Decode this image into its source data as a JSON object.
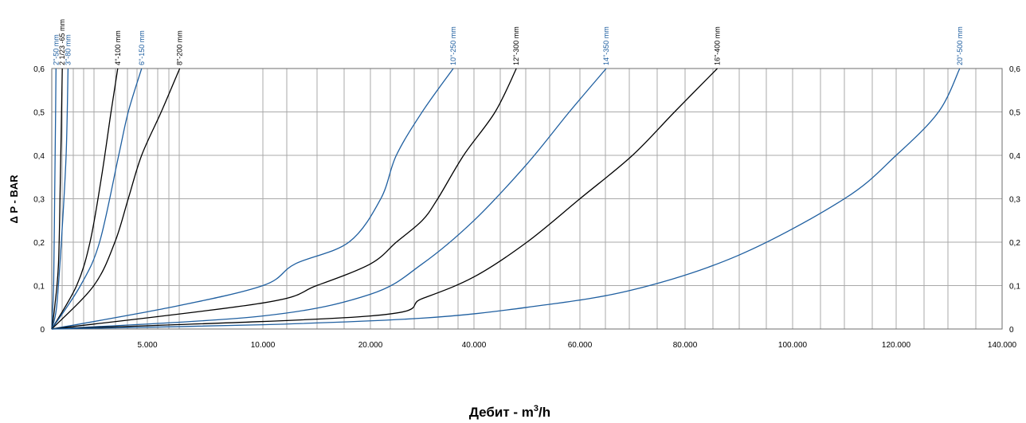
{
  "chart_data": {
    "type": "line",
    "xlabel_main": "Дебит - m",
    "xlabel_sup": "3",
    "xlabel_tail": "/h",
    "ylabel": "Δ P - BAR",
    "ylim": [
      0,
      0.6
    ],
    "x_ticks": [
      "5.000",
      "10.000",
      "20.000",
      "40.000",
      "60.000",
      "80.000",
      "100.000",
      "120.000",
      "140.000"
    ],
    "y_ticks": [
      "0",
      "0,1",
      "0,2",
      "0,3",
      "0,4",
      "0,5",
      "0,6"
    ],
    "grid": true,
    "series": [
      {
        "name": "2\"-50 mm",
        "color": "#1f5fa0",
        "points": [
          [
            0,
            0
          ],
          [
            0.1,
            0.11
          ],
          [
            0.15,
            0.3
          ],
          [
            0.2,
            0.5
          ],
          [
            0.22,
            0.6
          ]
        ]
      },
      {
        "name": "2 1/23 -65 mm",
        "color": "#000000",
        "points": [
          [
            0,
            0
          ],
          [
            0.15,
            0.05
          ],
          [
            0.35,
            0.15
          ],
          [
            0.45,
            0.35
          ],
          [
            0.55,
            0.6
          ]
        ]
      },
      {
        "name": "3\"-80 mm",
        "color": "#1f5fa0",
        "points": [
          [
            0,
            0
          ],
          [
            0.25,
            0.05
          ],
          [
            0.5,
            0.2
          ],
          [
            0.75,
            0.4
          ],
          [
            0.85,
            0.6
          ]
        ]
      },
      {
        "name": "4\"-100 mm",
        "color": "#000000",
        "points": [
          [
            0,
            0
          ],
          [
            1.3,
            0.1
          ],
          [
            2.0,
            0.2
          ],
          [
            2.6,
            0.35
          ],
          [
            3.1,
            0.5
          ],
          [
            3.45,
            0.6
          ]
        ]
      },
      {
        "name": "6\"-150 mm",
        "color": "#1f5fa0",
        "points": [
          [
            0,
            0
          ],
          [
            1.5,
            0.1
          ],
          [
            2.5,
            0.2
          ],
          [
            3.5,
            0.4
          ],
          [
            4.0,
            0.5
          ],
          [
            4.7,
            0.6
          ]
        ]
      },
      {
        "name": "8\"-200 mm",
        "color": "#000000",
        "points": [
          [
            0,
            0
          ],
          [
            2.2,
            0.1
          ],
          [
            3.3,
            0.2
          ],
          [
            4.0,
            0.3
          ],
          [
            4.7,
            0.4
          ],
          [
            5.6,
            0.5
          ],
          [
            6.4,
            0.6
          ]
        ]
      },
      {
        "name": "10\"-250 mm",
        "color": "#1f5fa0",
        "points": [
          [
            0,
            0
          ],
          [
            6.0,
            0.05
          ],
          [
            10.0,
            0.1
          ],
          [
            13.0,
            0.15
          ],
          [
            18.0,
            0.2
          ],
          [
            22.0,
            0.3
          ],
          [
            25.0,
            0.4
          ],
          [
            30.0,
            0.5
          ],
          [
            36.0,
            0.6
          ]
        ]
      },
      {
        "name": "12\"-300 mm",
        "color": "#000000",
        "points": [
          [
            0,
            0
          ],
          [
            10.0,
            0.06
          ],
          [
            15.0,
            0.1
          ],
          [
            20.0,
            0.15
          ],
          [
            25.0,
            0.2
          ],
          [
            30.0,
            0.25
          ],
          [
            33.0,
            0.3
          ],
          [
            38.0,
            0.4
          ],
          [
            44.0,
            0.5
          ],
          [
            48.0,
            0.6
          ]
        ]
      },
      {
        "name": "14\"-350 mm",
        "color": "#1f5fa0",
        "points": [
          [
            0,
            0
          ],
          [
            10.0,
            0.03
          ],
          [
            20.0,
            0.08
          ],
          [
            30.0,
            0.15
          ],
          [
            40.0,
            0.25
          ],
          [
            50.0,
            0.38
          ],
          [
            58.0,
            0.5
          ],
          [
            65.0,
            0.6
          ]
        ]
      },
      {
        "name": "16\"-400 mm",
        "color": "#000000",
        "points": [
          [
            0,
            0
          ],
          [
            20.0,
            0.03
          ],
          [
            30.0,
            0.07
          ],
          [
            40.0,
            0.12
          ],
          [
            50.0,
            0.2
          ],
          [
            60.0,
            0.3
          ],
          [
            70.0,
            0.4
          ],
          [
            78.0,
            0.5
          ],
          [
            86.0,
            0.6
          ]
        ]
      },
      {
        "name": "20\"-500 mm",
        "color": "#1f5fa0",
        "points": [
          [
            0,
            0
          ],
          [
            10.0,
            0.01
          ],
          [
            30.0,
            0.025
          ],
          [
            50.0,
            0.05
          ],
          [
            70.0,
            0.09
          ],
          [
            90.0,
            0.17
          ],
          [
            110.0,
            0.3
          ],
          [
            120.0,
            0.4
          ],
          [
            128.0,
            0.5
          ],
          [
            132.0,
            0.6
          ]
        ]
      }
    ]
  }
}
